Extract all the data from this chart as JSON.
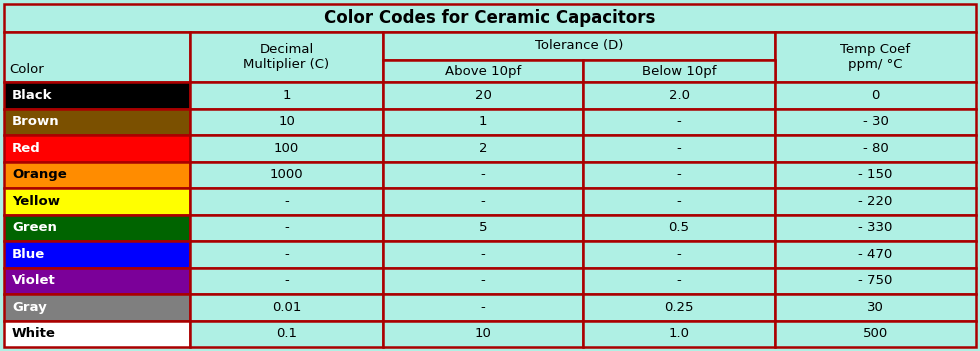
{
  "title": "Color Codes for Ceramic Capacitors",
  "background_color": "#aff0e4",
  "border_color": "#aa0000",
  "title_fontsize": 12,
  "header_fontsize": 9.5,
  "cell_fontsize": 9.5,
  "colors": [
    "Black",
    "Brown",
    "Red",
    "Orange",
    "Yellow",
    "Green",
    "Blue",
    "Violet",
    "Gray",
    "White"
  ],
  "color_hex": [
    "#000000",
    "#7B5000",
    "#FF0000",
    "#FF8C00",
    "#FFFF00",
    "#006400",
    "#0000FF",
    "#7B0099",
    "#7F7F7F",
    "#FFFFFF"
  ],
  "color_text": [
    "white",
    "white",
    "white",
    "black",
    "black",
    "white",
    "white",
    "white",
    "white",
    "black"
  ],
  "decimal_multiplier": [
    "1",
    "10",
    "100",
    "1000",
    "-",
    "-",
    "-",
    "-",
    "0.01",
    "0.1"
  ],
  "tolerance_above": [
    "20",
    "1",
    "2",
    "-",
    "-",
    "5",
    "-",
    "-",
    "-",
    "10"
  ],
  "tolerance_below": [
    "2.0",
    "-",
    "-",
    "-",
    "-",
    "0.5",
    "-",
    "-",
    "0.25",
    "1.0"
  ],
  "temp_coef": [
    "0",
    "- 30",
    "- 80",
    "- 150",
    "- 220",
    "- 330",
    "- 470",
    "- 750",
    "30",
    "500"
  ],
  "header1": "Color",
  "header2": "Decimal\nMultiplier (C)",
  "header3": "Tolerance (D)",
  "header3a": "Above 10pf",
  "header3b": "Below 10pf",
  "header4": "Temp Coef\nppm/ °C"
}
